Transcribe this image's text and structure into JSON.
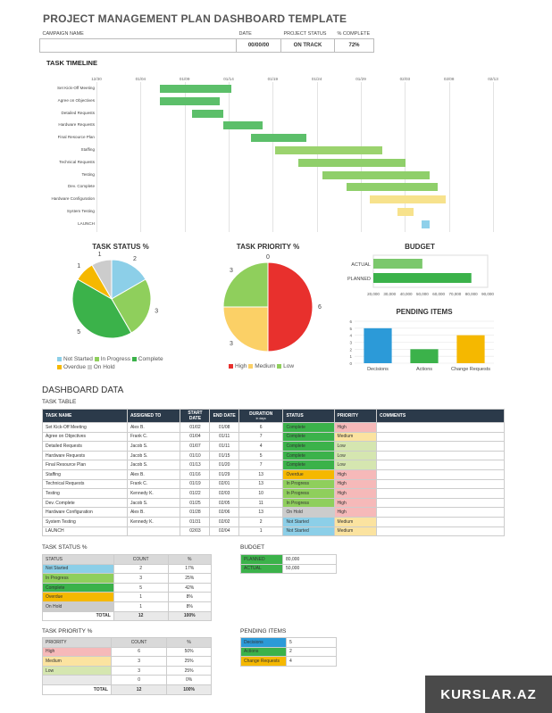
{
  "title": "PROJECT MANAGEMENT PLAN DASHBOARD TEMPLATE",
  "header": {
    "campaign_label": "CAMPAIGN NAME",
    "date_label": "DATE",
    "status_label": "PROJECT STATUS",
    "complete_label": "% COMPLETE",
    "date_value": "00/00/00",
    "status_value": "ON TRACK",
    "complete_value": "72%"
  },
  "timeline": {
    "title": "TASK TIMELINE",
    "dates": [
      "12/30",
      "01/04",
      "01/09",
      "01/14",
      "01/19",
      "01/24",
      "01/29",
      "02/03",
      "02/08",
      "02/13"
    ],
    "tasks": [
      {
        "name": "Set Kick-Off Meeting",
        "start": 0.16,
        "end": 0.34,
        "color": "#5cbf6a"
      },
      {
        "name": "Agree on Objectives",
        "start": 0.16,
        "end": 0.31,
        "color": "#5cbf6a"
      },
      {
        "name": "Detailed Requests",
        "start": 0.24,
        "end": 0.32,
        "color": "#5cbf6a"
      },
      {
        "name": "Hardware Requests",
        "start": 0.32,
        "end": 0.42,
        "color": "#5cbf6a"
      },
      {
        "name": "Final Resource Plan",
        "start": 0.39,
        "end": 0.53,
        "color": "#5cbf6a"
      },
      {
        "name": "Staffing",
        "start": 0.45,
        "end": 0.72,
        "color": "#9bd36e"
      },
      {
        "name": "Technical Requests",
        "start": 0.51,
        "end": 0.78,
        "color": "#8fcf6a"
      },
      {
        "name": "Testing",
        "start": 0.57,
        "end": 0.84,
        "color": "#8fcf6a"
      },
      {
        "name": "Dev. Complete",
        "start": 0.63,
        "end": 0.86,
        "color": "#8fcf6a"
      },
      {
        "name": "Hardware Configuration",
        "start": 0.69,
        "end": 0.88,
        "color": "#f7e28c"
      },
      {
        "name": "System Testing",
        "start": 0.76,
        "end": 0.8,
        "color": "#f7e28c"
      },
      {
        "name": "LAUNCH",
        "start": 0.82,
        "end": 0.84,
        "color": "#8fd0ea"
      }
    ]
  },
  "status_chart": {
    "title": "TASK STATUS %",
    "chart_data": {
      "type": "pie",
      "categories": [
        "Not Started",
        "In Progress",
        "Complete",
        "Overdue",
        "On Hold"
      ],
      "values": [
        2,
        3,
        5,
        1,
        1
      ],
      "colors": [
        "#8ccfe8",
        "#8fcf5c",
        "#3bb24a",
        "#f5b800",
        "#cccccc"
      ]
    }
  },
  "priority_chart": {
    "title": "TASK PRIORITY %",
    "chart_data": {
      "type": "pie",
      "categories": [
        "High",
        "Medium",
        "Low"
      ],
      "values": [
        6,
        3,
        3
      ],
      "extra_label": "0",
      "colors": [
        "#e8302d",
        "#fbd066",
        "#8fcf5c"
      ]
    }
  },
  "budget_chart": {
    "title": "BUDGET",
    "chart_data": {
      "type": "bar",
      "categories": [
        "ACTUAL",
        "PLANNED"
      ],
      "values": [
        50000,
        80000
      ],
      "xlim": [
        20000,
        90000
      ],
      "ticks": [
        "20,000",
        "30,000",
        "40,000",
        "50,000",
        "60,000",
        "70,000",
        "80,000",
        "90,000"
      ]
    }
  },
  "pending_chart": {
    "title": "PENDING ITEMS",
    "chart_data": {
      "type": "bar",
      "categories": [
        "Decisions",
        "Actions",
        "Change Requests"
      ],
      "values": [
        5,
        2,
        4
      ],
      "ylim": [
        0,
        6
      ],
      "ticks": [
        "0",
        "1",
        "2",
        "3",
        "4",
        "5",
        "6"
      ],
      "colors": [
        "#2c9ad8",
        "#3bb24a",
        "#f5b800"
      ]
    }
  },
  "dashboard_title": "DASHBOARD DATA",
  "task_table": {
    "label": "TASK TABLE",
    "headers": [
      "TASK NAME",
      "ASSIGNED TO",
      "START DATE",
      "END DATE",
      "DURATION",
      "STATUS",
      "PRIORITY",
      "COMMENTS"
    ],
    "duration_sub": "in days",
    "rows": [
      [
        "Set Kick-Off Meeting",
        "Alex B.",
        "01/02",
        "01/08",
        "6",
        "Complete",
        "High"
      ],
      [
        "Agree on Objectives",
        "Frank C.",
        "01/04",
        "01/11",
        "7",
        "Complete",
        "Medium"
      ],
      [
        "Detailed Requests",
        "Jacob S.",
        "01/07",
        "01/11",
        "4",
        "Complete",
        "Low"
      ],
      [
        "Hardware Requests",
        "Jacob S.",
        "01/10",
        "01/15",
        "5",
        "Complete",
        "Low"
      ],
      [
        "Final Resource Plan",
        "Jacob S.",
        "01/13",
        "01/20",
        "7",
        "Complete",
        "Low"
      ],
      [
        "Staffing",
        "Alex B.",
        "01/16",
        "01/29",
        "13",
        "Overdue",
        "High"
      ],
      [
        "Technical Requests",
        "Frank C.",
        "01/19",
        "02/01",
        "13",
        "In Progress",
        "High"
      ],
      [
        "Testing",
        "Kennedy K.",
        "01/22",
        "02/03",
        "10",
        "In Progress",
        "High"
      ],
      [
        "Dev. Complete",
        "Jacob S.",
        "01/25",
        "02/05",
        "11",
        "In Progress",
        "High"
      ],
      [
        "Hardware Configuration",
        "Alex B.",
        "01/28",
        "02/06",
        "13",
        "On Hold",
        "High"
      ],
      [
        "System Testing",
        "Kennedy K.",
        "01/31",
        "02/02",
        "2",
        "Not Started",
        "Medium"
      ],
      [
        "LAUNCH",
        "",
        "02/03",
        "02/04",
        "1",
        "Not Started",
        "Medium"
      ]
    ]
  },
  "status_table": {
    "label": "TASK STATUS %",
    "headers": [
      "STATUS",
      "COUNT",
      "%"
    ],
    "rows": [
      [
        "Not Started",
        "2",
        "17%"
      ],
      [
        "In Progress",
        "3",
        "25%"
      ],
      [
        "Complete",
        "5",
        "42%"
      ],
      [
        "Overdue",
        "1",
        "8%"
      ],
      [
        "On Hold",
        "1",
        "8%"
      ]
    ],
    "total": [
      "TOTAL",
      "12",
      "100%"
    ]
  },
  "budget_table": {
    "label": "BUDGET",
    "rows": [
      [
        "PLANNED",
        "80,000"
      ],
      [
        "ACTUAL",
        "50,000"
      ]
    ]
  },
  "priority_table": {
    "label": "TASK PRIORITY %",
    "headers": [
      "PRIORITY",
      "COUNT",
      "%"
    ],
    "rows": [
      [
        "High",
        "6",
        "50%"
      ],
      [
        "Medium",
        "3",
        "25%"
      ],
      [
        "Low",
        "3",
        "25%"
      ],
      [
        "",
        "0",
        "0%"
      ]
    ],
    "total": [
      "TOTAL",
      "12",
      "100%"
    ]
  },
  "pending_table": {
    "label": "PENDING ITEMS",
    "rows": [
      [
        "Decisions",
        "5"
      ],
      [
        "Actions",
        "2"
      ],
      [
        "Change Requests",
        "4"
      ]
    ]
  },
  "watermark": "KURSLAR.AZ",
  "colors": {
    "Complete": "#3bb24a",
    "Overdue": "#f5b800",
    "In Progress": "#8fcf5c",
    "On Hold": "#cccccc",
    "Not Started": "#8ccfe8",
    "High": "#f6b9b9",
    "Medium": "#fbe3a0",
    "Low": "#d5e6b0",
    "Decisions": "#2c9ad8",
    "Actions": "#3bb24a",
    "Change Requests": "#f5b800"
  }
}
